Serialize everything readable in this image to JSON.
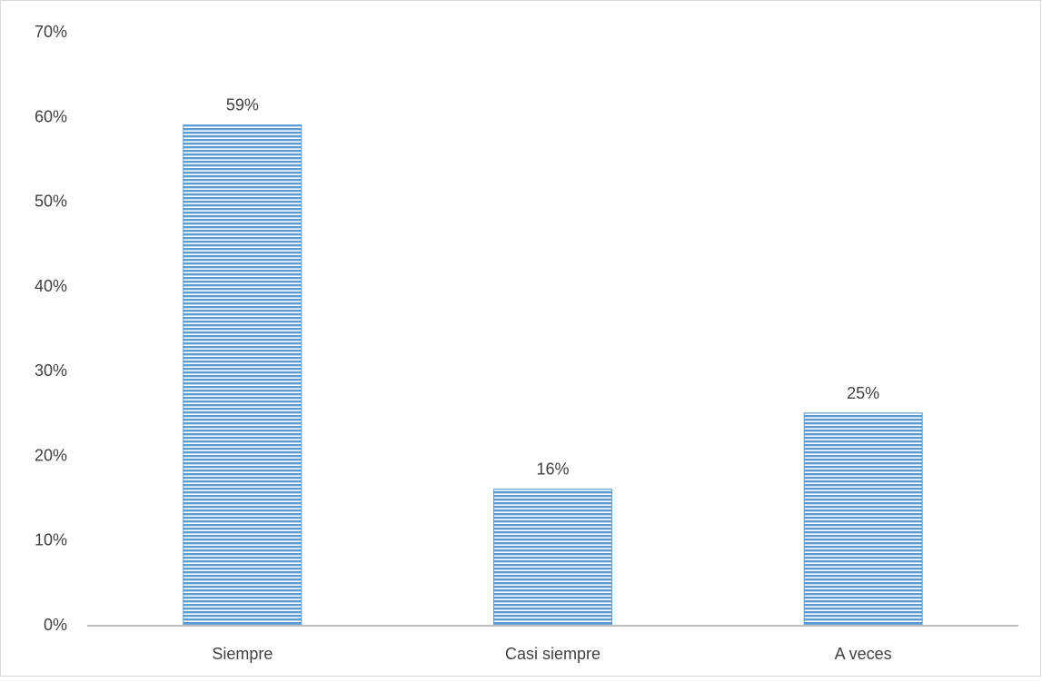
{
  "chart_data": {
    "type": "bar",
    "categories": [
      "Siempre",
      "Casi siempre",
      "A veces"
    ],
    "values": [
      0.59,
      0.16,
      0.25
    ],
    "data_labels": [
      "59%",
      "16%",
      "25%"
    ],
    "y_tick_labels": [
      "0%",
      "10%",
      "20%",
      "30%",
      "40%",
      "50%",
      "60%",
      "70%"
    ],
    "title": "",
    "xlabel": "",
    "ylabel": "",
    "ylim": [
      0,
      0.7
    ],
    "grid": false,
    "legend": "none",
    "bar_color": "#5b9bd5",
    "bar_pattern": "horizontal-lines",
    "axis_color": "#bfbfbf",
    "text_color": "#404040"
  }
}
